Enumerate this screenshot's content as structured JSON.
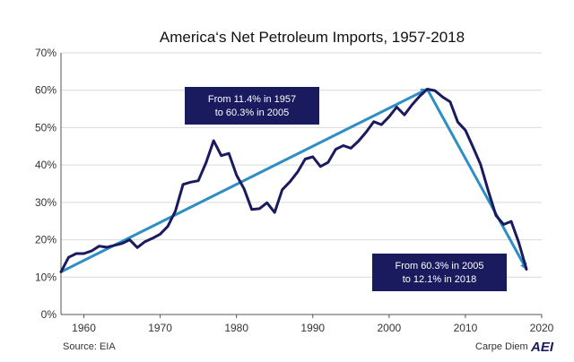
{
  "chart_data": {
    "type": "line",
    "title": "America‘s Net Petroleum Imports, 1957-2018",
    "xlabel": "",
    "ylabel": "",
    "xlim": [
      1957,
      2020
    ],
    "ylim": [
      0,
      70
    ],
    "x_ticks": [
      1960,
      1970,
      1980,
      1990,
      2000,
      2010,
      2020
    ],
    "y_ticks": [
      0,
      10,
      20,
      30,
      40,
      50,
      60,
      70
    ],
    "y_tick_labels": [
      "0%",
      "10%",
      "20%",
      "30%",
      "40%",
      "50%",
      "60%",
      "70%"
    ],
    "grid": "horizontal",
    "line_color": "#1a1a5e",
    "arrow_color": "#2b8ec6",
    "x": [
      1957,
      1958,
      1959,
      1960,
      1961,
      1962,
      1963,
      1964,
      1965,
      1966,
      1967,
      1968,
      1969,
      1970,
      1971,
      1972,
      1973,
      1974,
      1975,
      1976,
      1977,
      1978,
      1979,
      1980,
      1981,
      1982,
      1983,
      1984,
      1985,
      1986,
      1987,
      1988,
      1989,
      1990,
      1991,
      1992,
      1993,
      1994,
      1995,
      1996,
      1997,
      1998,
      1999,
      2000,
      2001,
      2002,
      2003,
      2004,
      2005,
      2006,
      2007,
      2008,
      2009,
      2010,
      2011,
      2012,
      2013,
      2014,
      2015,
      2016,
      2017,
      2018
    ],
    "series": [
      {
        "values": [
          11.4,
          15.3,
          16.3,
          16.3,
          17.0,
          18.3,
          18.0,
          18.5,
          19.0,
          20.0,
          17.9,
          19.5,
          20.4,
          21.5,
          23.6,
          27.7,
          34.8,
          35.4,
          35.8,
          40.6,
          46.5,
          42.5,
          43.1,
          37.3,
          33.6,
          28.1,
          28.3,
          29.9,
          27.3,
          33.4,
          35.5,
          38.1,
          41.6,
          42.2,
          39.6,
          40.7,
          44.2,
          45.2,
          44.5,
          46.4,
          48.8,
          51.6,
          50.8,
          52.9,
          55.5,
          53.4,
          56.1,
          58.4,
          60.3,
          59.9,
          58.2,
          56.9,
          51.5,
          49.3,
          44.8,
          40.1,
          33.1,
          26.5,
          24.1,
          24.9,
          19.2,
          12.1
        ]
      }
    ],
    "trend_arrows": [
      {
        "from": [
          1957,
          11.4
        ],
        "to": [
          2005,
          60.3
        ],
        "label_lines": [
          "From 11.4% in 1957",
          "to 60.3% in 2005"
        ]
      },
      {
        "from": [
          2005,
          60.3
        ],
        "to": [
          2018,
          12.1
        ],
        "label_lines": [
          "From 60.3% in 2005",
          "to 12.1% in 2018"
        ]
      }
    ],
    "source": "Source: EIA",
    "credit": "Carpe Diem",
    "logo": "AEI"
  }
}
